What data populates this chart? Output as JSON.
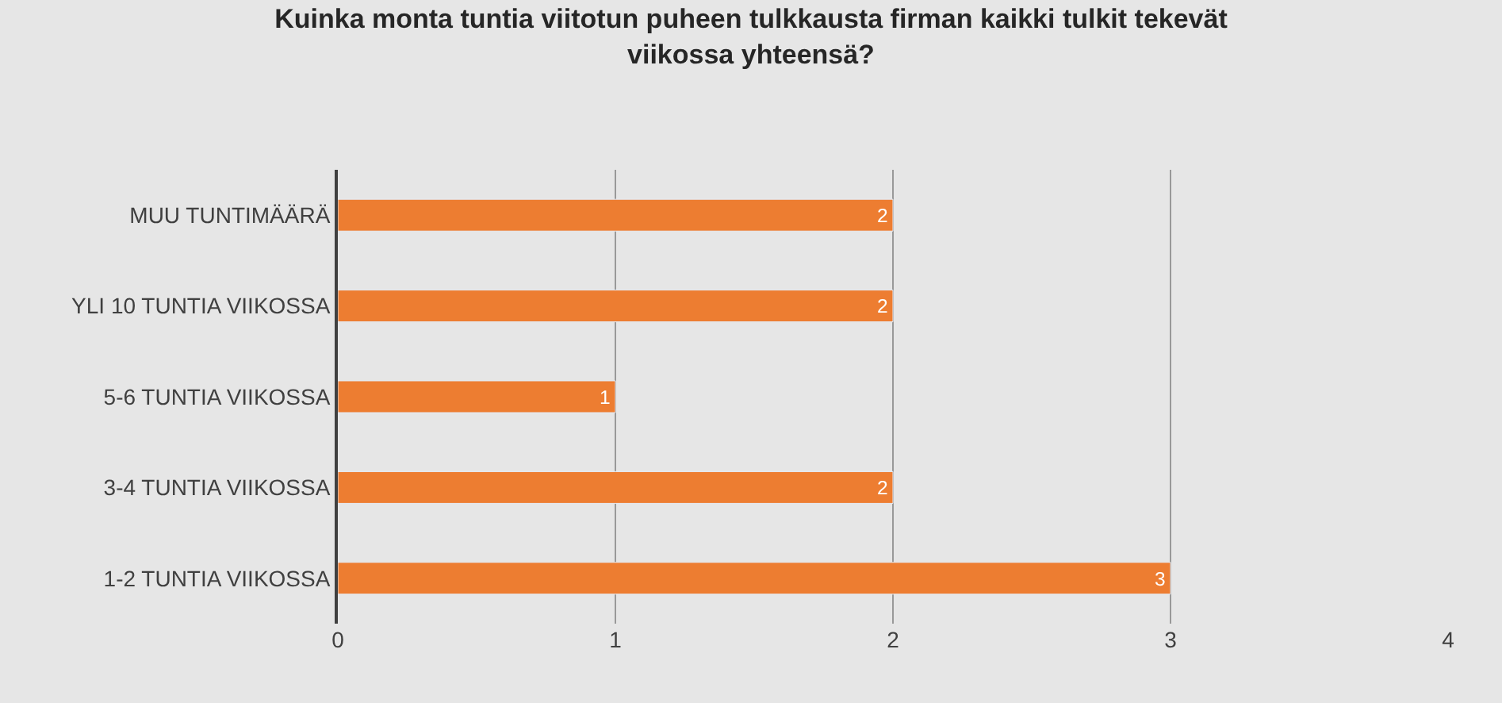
{
  "chart_data": {
    "type": "bar",
    "orientation": "horizontal",
    "title": "Kuinka monta tuntia viitotun puheen tulkkausta firman kaikki tulkit tekevät viikossa yhteensä?",
    "categories": [
      "MUU TUNTIMÄÄRÄ",
      "YLI 10 TUNTIA VIIKOSSA",
      "5-6 TUNTIA VIIKOSSA",
      "3-4 TUNTIA VIIKOSSA",
      "1-2 TUNTIA VIIKOSSA"
    ],
    "values": [
      2,
      2,
      1,
      2,
      3
    ],
    "color": "#ed7d31",
    "data_labels": true,
    "xlim": [
      0,
      4
    ],
    "xticks": [
      0,
      1,
      2,
      3,
      4
    ],
    "grid": "x",
    "legend": false
  }
}
